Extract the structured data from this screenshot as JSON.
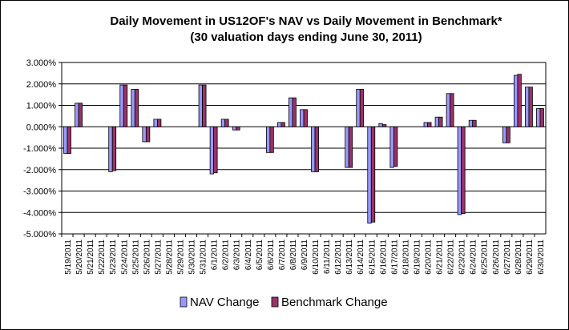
{
  "chart_data": {
    "type": "bar",
    "title": "Daily Movement in US12OF's NAV vs Daily Movement in Benchmark*",
    "subtitle": "(30 valuation days ending June 30, 2011)",
    "xlabel": "",
    "ylabel": "",
    "ylim": [
      -5,
      3
    ],
    "y_ticks": [
      "3.000%",
      "2.000%",
      "1.000%",
      "0.000%",
      "-1.000%",
      "-2.000%",
      "-3.000%",
      "-4.000%",
      "-5.000%"
    ],
    "grid": "horizontal",
    "legend_position": "bottom",
    "categories": [
      "5/19/2011",
      "5/20/2011",
      "5/21/2011",
      "5/22/2011",
      "5/23/2011",
      "5/24/2011",
      "5/25/2011",
      "5/26/2011",
      "5/27/2011",
      "5/28/2011",
      "5/29/2011",
      "5/30/2011",
      "5/31/2011",
      "6/1/2011",
      "6/2/2011",
      "6/3/2011",
      "6/4/2011",
      "6/5/2011",
      "6/6/2011",
      "6/7/2011",
      "6/8/2011",
      "6/9/2011",
      "6/10/2011",
      "6/11/2011",
      "6/12/2011",
      "6/13/2011",
      "6/14/2011",
      "6/15/2011",
      "6/16/2011",
      "6/17/2011",
      "6/18/2011",
      "6/19/2011",
      "6/20/2011",
      "6/21/2011",
      "6/22/2011",
      "6/23/2011",
      "6/24/2011",
      "6/25/2011",
      "6/26/2011",
      "6/27/2011",
      "6/28/2011",
      "6/29/2011",
      "6/30/2011"
    ],
    "series": [
      {
        "name": "NAV Change",
        "color": "#9999ff",
        "values": [
          -1.25,
          1.1,
          null,
          null,
          -2.1,
          1.95,
          1.75,
          -0.7,
          0.35,
          null,
          null,
          null,
          1.95,
          -2.2,
          0.35,
          -0.15,
          null,
          null,
          -1.2,
          0.2,
          1.35,
          0.8,
          -2.1,
          null,
          null,
          -1.9,
          1.75,
          -4.5,
          0.15,
          -1.9,
          null,
          null,
          0.2,
          0.45,
          1.55,
          -4.1,
          0.3,
          null,
          null,
          -0.75,
          2.4,
          1.85,
          0.85
        ]
      },
      {
        "name": "Benchmark Change",
        "color": "#993366",
        "values": [
          -1.25,
          1.1,
          null,
          null,
          -2.05,
          1.95,
          1.75,
          -0.7,
          0.35,
          null,
          null,
          null,
          1.95,
          -2.15,
          0.35,
          -0.15,
          null,
          null,
          -1.2,
          0.2,
          1.35,
          0.8,
          -2.1,
          null,
          null,
          -1.9,
          1.75,
          -4.45,
          0.1,
          -1.85,
          null,
          null,
          0.2,
          0.45,
          1.55,
          -4.05,
          0.3,
          null,
          null,
          -0.75,
          2.45,
          1.85,
          0.85
        ]
      }
    ]
  }
}
